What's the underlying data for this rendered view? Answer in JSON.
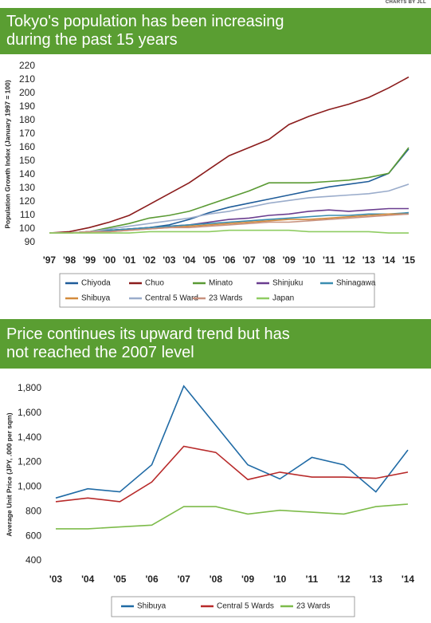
{
  "header": {
    "credit": "CHARTS BY JLL"
  },
  "chart_data": [
    {
      "type": "line",
      "title": "Tokyo's population has been increasing during the past 15 years",
      "y_label": "Population Growth Index (January 1997 = 100)",
      "categories": [
        "'97",
        "'98",
        "'99",
        "'00",
        "'01",
        "'02",
        "'03",
        "'04",
        "'05",
        "'06",
        "'07",
        "'08",
        "'09",
        "'10",
        "'11",
        "'12",
        "'13",
        "'14",
        "'15"
      ],
      "ylim": [
        90,
        220
      ],
      "yticks": [
        90,
        100,
        110,
        120,
        130,
        140,
        150,
        160,
        170,
        180,
        190,
        200,
        210,
        220
      ],
      "grid": false,
      "series": [
        {
          "name": "Chiyoda",
          "color": "#1f5c99",
          "values": [
            97,
            97,
            98,
            99,
            100,
            101,
            103,
            107,
            112,
            116,
            119,
            122,
            125,
            128,
            131,
            133,
            135,
            141,
            159
          ]
        },
        {
          "name": "Chuo",
          "color": "#8b1c1c",
          "values": [
            97,
            98,
            101,
            105,
            110,
            118,
            126,
            134,
            144,
            154,
            160,
            166,
            177,
            183,
            188,
            192,
            197,
            204,
            212
          ]
        },
        {
          "name": "Minato",
          "color": "#5a9a34",
          "values": [
            97,
            97,
            98,
            101,
            104,
            108,
            110,
            113,
            118,
            123,
            128,
            134,
            134,
            134,
            135,
            136,
            138,
            141,
            160
          ]
        },
        {
          "name": "Shinjuku",
          "color": "#6a3d8f",
          "values": [
            97,
            97,
            98,
            99,
            100,
            101,
            102,
            103,
            105,
            107,
            108,
            110,
            111,
            113,
            114,
            113,
            114,
            115,
            115
          ]
        },
        {
          "name": "Shinagawa",
          "color": "#3a8db0",
          "values": [
            97,
            97,
            98,
            99,
            100,
            101,
            102,
            103,
            104,
            105,
            106,
            107,
            108,
            109,
            110,
            110,
            111,
            111,
            112
          ]
        },
        {
          "name": "Shibuya",
          "color": "#d48b3c",
          "values": [
            97,
            97,
            98,
            98,
            99,
            100,
            101,
            102,
            103,
            104,
            105,
            106,
            107,
            107,
            108,
            109,
            110,
            111,
            111
          ]
        },
        {
          "name": "Central 5 Ward",
          "color": "#9aaccb",
          "values": [
            97,
            97,
            98,
            100,
            102,
            104,
            106,
            108,
            111,
            113,
            116,
            119,
            121,
            123,
            124,
            125,
            126,
            128,
            133
          ]
        },
        {
          "name": "23 Wards",
          "color": "#c8917e",
          "values": [
            97,
            97,
            98,
            98,
            99,
            100,
            101,
            101,
            102,
            103,
            104,
            105,
            105,
            106,
            107,
            108,
            109,
            110,
            111
          ]
        },
        {
          "name": "Japan",
          "color": "#8fcc62",
          "values": [
            97,
            97,
            97,
            97,
            97,
            98,
            98,
            98,
            98,
            99,
            99,
            99,
            99,
            98,
            98,
            98,
            98,
            97,
            97
          ]
        }
      ]
    },
    {
      "type": "line",
      "title": "Price continues its upward trend but has not reached the 2007 level",
      "y_label": "Average Unit Price (JPY, .000 per sqm)",
      "categories": [
        "'03",
        "'04",
        "'05",
        "'06",
        "'07",
        "'08",
        "'09",
        "'10",
        "'11",
        "'12",
        "'13",
        "'14"
      ],
      "ylim": [
        400,
        1800
      ],
      "yticks": [
        400,
        600,
        800,
        {
          "value": 1000,
          "label": "1,000"
        },
        {
          "value": 1200,
          "label": "1,200"
        },
        {
          "value": 1400,
          "label": "1,400"
        },
        {
          "value": 1600,
          "label": "1,600"
        },
        {
          "value": 1800,
          "label": "1,800"
        }
      ],
      "grid": false,
      "series": [
        {
          "name": "Shibuya",
          "color": "#1f6aa5",
          "values": [
            910,
            985,
            960,
            1180,
            1820,
            1500,
            1180,
            1065,
            1240,
            1180,
            960,
            1300
          ]
        },
        {
          "name": "Central 5 Wards",
          "color": "#b82a2a",
          "values": [
            880,
            910,
            880,
            1040,
            1330,
            1280,
            1060,
            1120,
            1080,
            1080,
            1070,
            1120
          ]
        },
        {
          "name": "23 Wards",
          "color": "#7dbb4a",
          "values": [
            660,
            660,
            675,
            690,
            840,
            840,
            780,
            810,
            795,
            780,
            840,
            860
          ]
        }
      ]
    }
  ]
}
